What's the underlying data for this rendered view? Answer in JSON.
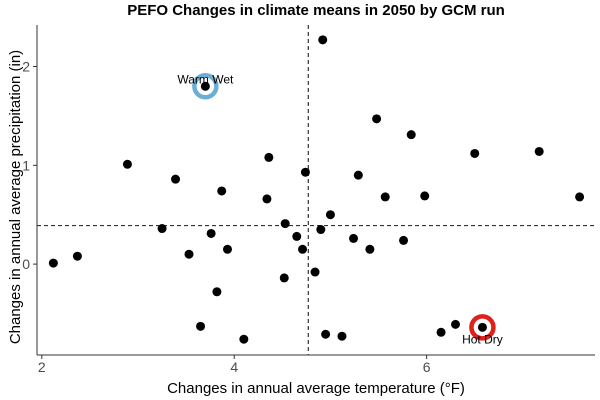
{
  "chart_data": {
    "type": "scatter",
    "title": "PEFO Changes in climate means in 2050 by GCM run",
    "xlabel": "Changes in annual average temperature (°F)",
    "ylabel": "Changes in annual average precipitation (in)",
    "xlim": [
      1.95,
      7.75
    ],
    "ylim": [
      -0.92,
      2.42
    ],
    "xticks": [
      2,
      4,
      6
    ],
    "yticks": [
      0,
      1,
      2
    ],
    "xtick_labels": [
      "2",
      "4",
      "6"
    ],
    "ytick_labels": [
      "0",
      "1",
      "2"
    ],
    "grid": false,
    "reference_lines": {
      "x": 4.77,
      "y": 0.39
    },
    "points": [
      {
        "x": 2.12,
        "y": 0.01
      },
      {
        "x": 2.37,
        "y": 0.08
      },
      {
        "x": 2.89,
        "y": 1.01
      },
      {
        "x": 3.25,
        "y": 0.36
      },
      {
        "x": 3.39,
        "y": 0.86
      },
      {
        "x": 3.53,
        "y": 0.1
      },
      {
        "x": 3.65,
        "y": -0.63
      },
      {
        "x": 3.7,
        "y": 1.8
      },
      {
        "x": 3.76,
        "y": 0.31
      },
      {
        "x": 3.82,
        "y": -0.28
      },
      {
        "x": 3.87,
        "y": 0.74
      },
      {
        "x": 3.93,
        "y": 0.15
      },
      {
        "x": 4.1,
        "y": -0.76
      },
      {
        "x": 4.34,
        "y": 0.66
      },
      {
        "x": 4.36,
        "y": 1.08
      },
      {
        "x": 4.52,
        "y": -0.14
      },
      {
        "x": 4.53,
        "y": 0.41
      },
      {
        "x": 4.65,
        "y": 0.28
      },
      {
        "x": 4.71,
        "y": 0.15
      },
      {
        "x": 4.74,
        "y": 0.93
      },
      {
        "x": 4.84,
        "y": -0.08
      },
      {
        "x": 4.9,
        "y": 0.35
      },
      {
        "x": 4.92,
        "y": 2.27
      },
      {
        "x": 4.95,
        "y": -0.71
      },
      {
        "x": 5.0,
        "y": 0.5
      },
      {
        "x": 5.12,
        "y": -0.73
      },
      {
        "x": 5.24,
        "y": 0.26
      },
      {
        "x": 5.29,
        "y": 0.9
      },
      {
        "x": 5.41,
        "y": 0.15
      },
      {
        "x": 5.48,
        "y": 1.47
      },
      {
        "x": 5.57,
        "y": 0.68
      },
      {
        "x": 5.76,
        "y": 0.24
      },
      {
        "x": 5.84,
        "y": 1.31
      },
      {
        "x": 5.98,
        "y": 0.69
      },
      {
        "x": 6.15,
        "y": -0.69
      },
      {
        "x": 6.3,
        "y": -0.61
      },
      {
        "x": 6.5,
        "y": 1.12
      },
      {
        "x": 6.58,
        "y": -0.64
      },
      {
        "x": 7.17,
        "y": 1.14
      },
      {
        "x": 7.59,
        "y": 0.68
      }
    ],
    "highlights": [
      {
        "label": "Warm Wet",
        "x": 3.7,
        "y": 1.8,
        "color": "#6baed6",
        "label_position": "above"
      },
      {
        "label": "Hot Dry",
        "x": 6.58,
        "y": -0.64,
        "color": "#e0201b",
        "label_position": "below"
      }
    ]
  },
  "colors": {
    "points": "#000000",
    "reference_line": "#333333",
    "axis": "#333333",
    "tick_text": "#4d4d4d",
    "background": "#ffffff"
  }
}
